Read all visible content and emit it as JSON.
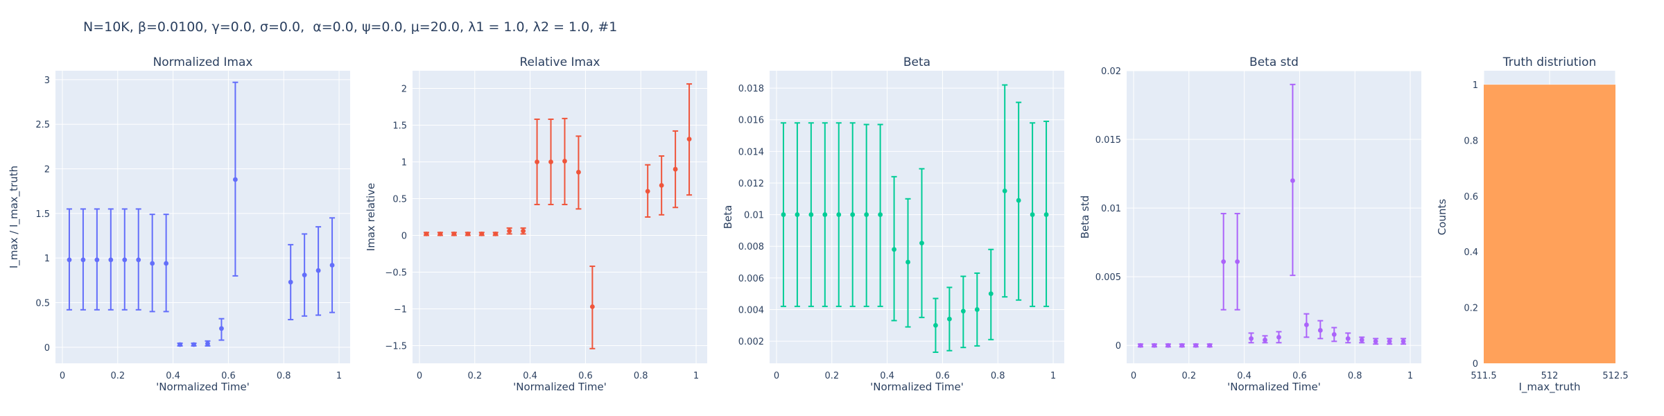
{
  "figure_title": "N=10K, β=0.0100, γ=0.0, σ=0.0,  α=0.0, ψ=0.0, μ=20.0, λ1 = 1.0, λ2 = 1.0, #1",
  "colors": {
    "background": "#e5ecf6",
    "grid": "#ffffff",
    "series_1": "#636efa",
    "series_2": "#ef553b",
    "series_3": "#00cc96",
    "series_4": "#ab63fa",
    "histogram": "#ffa15a"
  },
  "chart_data": [
    {
      "type": "scatter",
      "title": "Normalized Imax",
      "xlabel": "'Normalized Time'",
      "ylabel": "I_max / I_max_truth",
      "xlim": [
        -0.025,
        1.04
      ],
      "ylim": [
        -0.18,
        3.1
      ],
      "xticks": [
        0,
        0.2,
        0.4,
        0.6,
        0.8,
        1
      ],
      "xticklabels": [
        "0",
        "0.2",
        "0.4",
        "0.6",
        "0.8",
        "1"
      ],
      "yticks": [
        0,
        0.5,
        1,
        1.5,
        2,
        2.5,
        3
      ],
      "yticklabels": [
        "0",
        "0.5",
        "1",
        "1.5",
        "2",
        "2.5",
        "3"
      ],
      "grid": true,
      "color": "series_1",
      "points": [
        {
          "x": 0.025,
          "y": 0.98,
          "lo": 0.42,
          "hi": 1.55
        },
        {
          "x": 0.075,
          "y": 0.98,
          "lo": 0.42,
          "hi": 1.55
        },
        {
          "x": 0.125,
          "y": 0.98,
          "lo": 0.42,
          "hi": 1.55
        },
        {
          "x": 0.175,
          "y": 0.98,
          "lo": 0.42,
          "hi": 1.55
        },
        {
          "x": 0.225,
          "y": 0.98,
          "lo": 0.42,
          "hi": 1.55
        },
        {
          "x": 0.275,
          "y": 0.98,
          "lo": 0.42,
          "hi": 1.55
        },
        {
          "x": 0.325,
          "y": 0.94,
          "lo": 0.4,
          "hi": 1.49
        },
        {
          "x": 0.375,
          "y": 0.94,
          "lo": 0.4,
          "hi": 1.49
        },
        {
          "x": 0.425,
          "y": 0.03,
          "lo": 0.015,
          "hi": 0.045
        },
        {
          "x": 0.475,
          "y": 0.03,
          "lo": 0.015,
          "hi": 0.045
        },
        {
          "x": 0.525,
          "y": 0.04,
          "lo": 0.015,
          "hi": 0.07
        },
        {
          "x": 0.575,
          "y": 0.21,
          "lo": 0.08,
          "hi": 0.32
        },
        {
          "x": 0.625,
          "y": 1.88,
          "lo": 0.8,
          "hi": 2.97
        },
        {
          "x": 0.825,
          "y": 0.73,
          "lo": 0.31,
          "hi": 1.15
        },
        {
          "x": 0.875,
          "y": 0.81,
          "lo": 0.35,
          "hi": 1.27
        },
        {
          "x": 0.925,
          "y": 0.86,
          "lo": 0.36,
          "hi": 1.35
        },
        {
          "x": 0.975,
          "y": 0.92,
          "lo": 0.39,
          "hi": 1.45
        }
      ]
    },
    {
      "type": "scatter",
      "title": "Relative Imax",
      "xlabel": "'Normalized Time'",
      "ylabel": "Imax relative",
      "xlim": [
        -0.025,
        1.04
      ],
      "ylim": [
        -1.74,
        2.24
      ],
      "xticks": [
        0,
        0.2,
        0.4,
        0.6,
        0.8,
        1
      ],
      "xticklabels": [
        "0",
        "0.2",
        "0.4",
        "0.6",
        "0.8",
        "1"
      ],
      "yticks": [
        -1.5,
        -1,
        -0.5,
        0,
        0.5,
        1,
        1.5,
        2
      ],
      "yticklabels": [
        "−1.5",
        "−1",
        "−0.5",
        "0",
        "0.5",
        "1",
        "1.5",
        "2"
      ],
      "grid": true,
      "color": "series_2",
      "points": [
        {
          "x": 0.025,
          "y": 0.02,
          "lo": 0.0,
          "hi": 0.04
        },
        {
          "x": 0.075,
          "y": 0.02,
          "lo": 0.0,
          "hi": 0.04
        },
        {
          "x": 0.125,
          "y": 0.02,
          "lo": 0.0,
          "hi": 0.04
        },
        {
          "x": 0.175,
          "y": 0.02,
          "lo": 0.0,
          "hi": 0.04
        },
        {
          "x": 0.225,
          "y": 0.02,
          "lo": 0.0,
          "hi": 0.04
        },
        {
          "x": 0.275,
          "y": 0.02,
          "lo": 0.0,
          "hi": 0.04
        },
        {
          "x": 0.325,
          "y": 0.06,
          "lo": 0.02,
          "hi": 0.1
        },
        {
          "x": 0.375,
          "y": 0.06,
          "lo": 0.02,
          "hi": 0.1
        },
        {
          "x": 0.425,
          "y": 1.0,
          "lo": 0.42,
          "hi": 1.58
        },
        {
          "x": 0.475,
          "y": 1.0,
          "lo": 0.42,
          "hi": 1.58
        },
        {
          "x": 0.525,
          "y": 1.01,
          "lo": 0.42,
          "hi": 1.59
        },
        {
          "x": 0.575,
          "y": 0.86,
          "lo": 0.36,
          "hi": 1.35
        },
        {
          "x": 0.625,
          "y": -0.97,
          "lo": -1.54,
          "hi": -0.42
        },
        {
          "x": 0.825,
          "y": 0.6,
          "lo": 0.25,
          "hi": 0.96
        },
        {
          "x": 0.875,
          "y": 0.68,
          "lo": 0.28,
          "hi": 1.08
        },
        {
          "x": 0.925,
          "y": 0.9,
          "lo": 0.38,
          "hi": 1.42
        },
        {
          "x": 0.975,
          "y": 1.31,
          "lo": 0.55,
          "hi": 2.06
        }
      ]
    },
    {
      "type": "scatter",
      "title": "Beta",
      "xlabel": "'Normalized Time'",
      "ylabel": "Beta",
      "xlim": [
        -0.025,
        1.04
      ],
      "ylim": [
        0.0006,
        0.0191
      ],
      "xticks": [
        0,
        0.2,
        0.4,
        0.6,
        0.8,
        1
      ],
      "xticklabels": [
        "0",
        "0.2",
        "0.4",
        "0.6",
        "0.8",
        "1"
      ],
      "yticks": [
        0.002,
        0.004,
        0.006,
        0.008,
        0.01,
        0.012,
        0.014,
        0.016,
        0.018
      ],
      "yticklabels": [
        "0.002",
        "0.004",
        "0.006",
        "0.008",
        "0.01",
        "0.012",
        "0.014",
        "0.016",
        "0.018"
      ],
      "grid": true,
      "color": "series_3",
      "points": [
        {
          "x": 0.025,
          "y": 0.01,
          "lo": 0.0042,
          "hi": 0.0158
        },
        {
          "x": 0.075,
          "y": 0.01,
          "lo": 0.0042,
          "hi": 0.0158
        },
        {
          "x": 0.125,
          "y": 0.01,
          "lo": 0.0042,
          "hi": 0.0158
        },
        {
          "x": 0.175,
          "y": 0.01,
          "lo": 0.0042,
          "hi": 0.0158
        },
        {
          "x": 0.225,
          "y": 0.01,
          "lo": 0.0042,
          "hi": 0.0158
        },
        {
          "x": 0.275,
          "y": 0.01,
          "lo": 0.0042,
          "hi": 0.0158
        },
        {
          "x": 0.325,
          "y": 0.01,
          "lo": 0.0042,
          "hi": 0.0157
        },
        {
          "x": 0.375,
          "y": 0.01,
          "lo": 0.0042,
          "hi": 0.0157
        },
        {
          "x": 0.425,
          "y": 0.0078,
          "lo": 0.0033,
          "hi": 0.0124
        },
        {
          "x": 0.475,
          "y": 0.007,
          "lo": 0.0029,
          "hi": 0.011
        },
        {
          "x": 0.525,
          "y": 0.0082,
          "lo": 0.0035,
          "hi": 0.0129
        },
        {
          "x": 0.575,
          "y": 0.003,
          "lo": 0.0013,
          "hi": 0.0047
        },
        {
          "x": 0.625,
          "y": 0.0034,
          "lo": 0.0014,
          "hi": 0.0054
        },
        {
          "x": 0.675,
          "y": 0.0039,
          "lo": 0.0016,
          "hi": 0.0061
        },
        {
          "x": 0.725,
          "y": 0.004,
          "lo": 0.0017,
          "hi": 0.0063
        },
        {
          "x": 0.775,
          "y": 0.005,
          "lo": 0.0021,
          "hi": 0.0078
        },
        {
          "x": 0.825,
          "y": 0.0115,
          "lo": 0.0048,
          "hi": 0.0182
        },
        {
          "x": 0.875,
          "y": 0.0109,
          "lo": 0.0046,
          "hi": 0.0171
        },
        {
          "x": 0.925,
          "y": 0.01,
          "lo": 0.0042,
          "hi": 0.0158
        },
        {
          "x": 0.975,
          "y": 0.01,
          "lo": 0.0042,
          "hi": 0.0159
        }
      ]
    },
    {
      "type": "scatter",
      "title": "Beta std",
      "xlabel": "'Normalized Time'",
      "ylabel": "Beta std",
      "xlim": [
        -0.025,
        1.04
      ],
      "ylim": [
        -0.0013,
        0.02
      ],
      "xticks": [
        0,
        0.2,
        0.4,
        0.6,
        0.8,
        1
      ],
      "xticklabels": [
        "0",
        "0.2",
        "0.4",
        "0.6",
        "0.8",
        "1"
      ],
      "yticks": [
        0,
        0.005,
        0.01,
        0.015,
        0.02
      ],
      "yticklabels": [
        "0",
        "0.005",
        "0.01",
        "0.015",
        "0.02"
      ],
      "grid": true,
      "color": "series_4",
      "points": [
        {
          "x": 0.025,
          "y": 0.0,
          "lo": -0.0001,
          "hi": 0.0001
        },
        {
          "x": 0.075,
          "y": 0.0,
          "lo": -0.0001,
          "hi": 0.0001
        },
        {
          "x": 0.125,
          "y": 0.0,
          "lo": -0.0001,
          "hi": 0.0001
        },
        {
          "x": 0.175,
          "y": 0.0,
          "lo": -0.0001,
          "hi": 0.0001
        },
        {
          "x": 0.225,
          "y": 0.0,
          "lo": -0.0001,
          "hi": 0.0001
        },
        {
          "x": 0.275,
          "y": 0.0,
          "lo": -0.0001,
          "hi": 0.0001
        },
        {
          "x": 0.325,
          "y": 0.0061,
          "lo": 0.0026,
          "hi": 0.0096
        },
        {
          "x": 0.375,
          "y": 0.0061,
          "lo": 0.0026,
          "hi": 0.0096
        },
        {
          "x": 0.425,
          "y": 0.0005,
          "lo": 0.0002,
          "hi": 0.0009
        },
        {
          "x": 0.475,
          "y": 0.0004,
          "lo": 0.0002,
          "hi": 0.0007
        },
        {
          "x": 0.525,
          "y": 0.0006,
          "lo": 0.0002,
          "hi": 0.001
        },
        {
          "x": 0.575,
          "y": 0.012,
          "lo": 0.0051,
          "hi": 0.019
        },
        {
          "x": 0.625,
          "y": 0.0015,
          "lo": 0.0006,
          "hi": 0.0023
        },
        {
          "x": 0.675,
          "y": 0.0011,
          "lo": 0.0005,
          "hi": 0.0018
        },
        {
          "x": 0.725,
          "y": 0.0008,
          "lo": 0.0003,
          "hi": 0.0013
        },
        {
          "x": 0.775,
          "y": 0.0005,
          "lo": 0.0002,
          "hi": 0.0009
        },
        {
          "x": 0.825,
          "y": 0.0004,
          "lo": 0.0002,
          "hi": 0.0006
        },
        {
          "x": 0.875,
          "y": 0.0003,
          "lo": 0.0001,
          "hi": 0.0005
        },
        {
          "x": 0.925,
          "y": 0.0003,
          "lo": 0.0001,
          "hi": 0.0005
        },
        {
          "x": 0.975,
          "y": 0.0003,
          "lo": 0.0001,
          "hi": 0.0005
        }
      ]
    },
    {
      "type": "bar",
      "title": "Truth distriution",
      "xlabel": "I_max_truth",
      "ylabel": "Counts",
      "xlim": [
        511.5,
        512.5
      ],
      "ylim": [
        0,
        1.05
      ],
      "xticks": [
        511.5,
        512,
        512.5
      ],
      "xticklabels": [
        "511.5",
        "512",
        "512.5"
      ],
      "yticks": [
        0,
        0.2,
        0.4,
        0.6,
        0.8,
        1
      ],
      "yticklabels": [
        "0",
        "0.2",
        "0.4",
        "0.6",
        "0.8",
        "1"
      ],
      "grid": true,
      "color": "histogram",
      "bins": [
        {
          "x0": 511.5,
          "x1": 512.5,
          "count": 1
        }
      ]
    }
  ]
}
